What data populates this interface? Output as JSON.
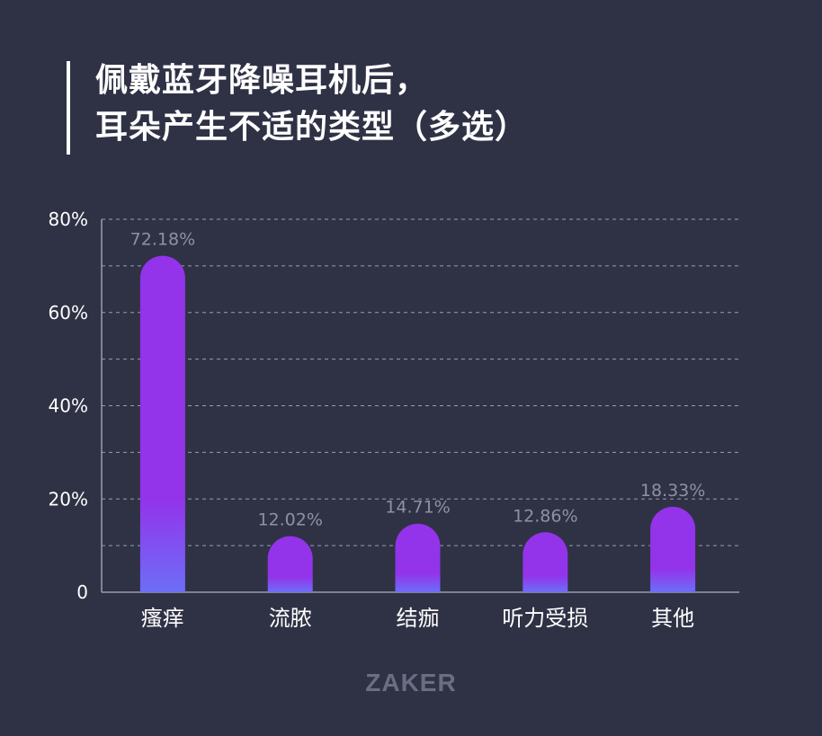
{
  "title_lines": [
    "佩戴蓝牙降噪耳机后，",
    "耳朵产生不适的类型（多选）"
  ],
  "watermark": "ZAKER",
  "colors": {
    "background": "#2f3245",
    "bar_top": "#9333ea",
    "bar_bottom": "#6d6ef7",
    "grid": "#9a9db0",
    "axis_text": "#ffffff",
    "value_label": "#8e91a3"
  },
  "chart_data": {
    "type": "bar",
    "title": "佩戴蓝牙降噪耳机后，耳朵产生不适的类型（多选）",
    "categories": [
      "瘙痒",
      "流脓",
      "结痂",
      "听力受损",
      "其他"
    ],
    "values": [
      72.18,
      12.02,
      14.71,
      12.86,
      18.33
    ],
    "value_labels": [
      "72.18%",
      "12.02%",
      "14.71%",
      "12.86%",
      "18.33%"
    ],
    "yticks": [
      0,
      20,
      40,
      60,
      80
    ],
    "ytick_labels": [
      "0",
      "20%",
      "40%",
      "60%",
      "80%"
    ],
    "ylim": [
      0,
      80
    ],
    "grid": true,
    "xlabel": "",
    "ylabel": ""
  }
}
